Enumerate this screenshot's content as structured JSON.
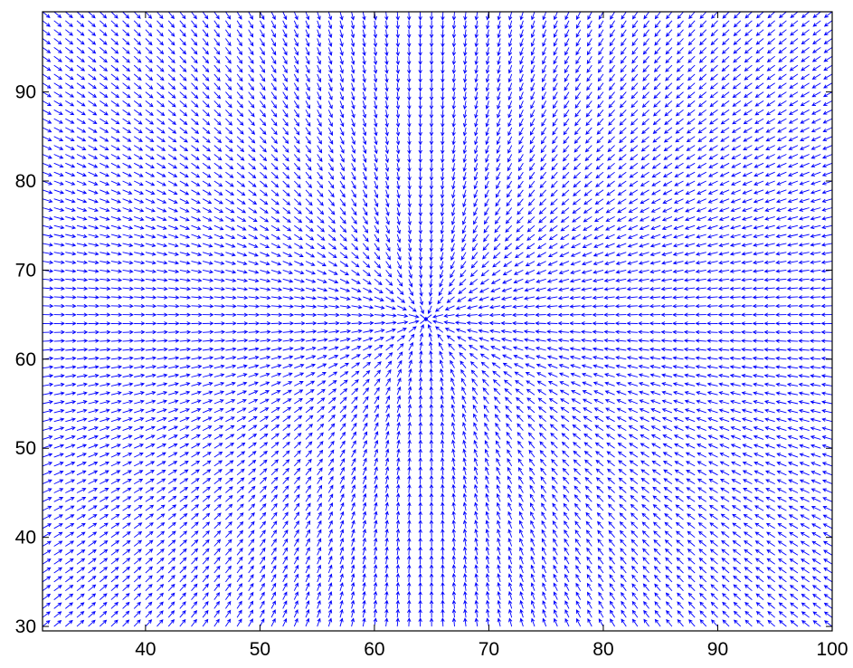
{
  "chart_data": {
    "type": "quiver",
    "title": "",
    "xlabel": "",
    "ylabel": "",
    "xlim": [
      31,
      100
    ],
    "ylim": [
      29.5,
      99
    ],
    "xticks": [
      40,
      50,
      60,
      70,
      80,
      90,
      100
    ],
    "yticks": [
      30,
      40,
      50,
      60,
      70,
      80,
      90
    ],
    "xtick_labels": [
      "40",
      "50",
      "60",
      "70",
      "80",
      "90",
      "100"
    ],
    "ytick_labels": [
      "30",
      "40",
      "50",
      "60",
      "70",
      "80",
      "90"
    ],
    "grid": false,
    "legend": "none",
    "field": {
      "description_type": "radial-sink",
      "center": [
        64.5,
        64.5
      ],
      "x_grid": {
        "start": 31,
        "stop": 100,
        "step": 1
      },
      "y_grid": {
        "start": 30,
        "stop": 99,
        "step": 1
      },
      "arrow_length": 0.9,
      "direction": "toward-center"
    },
    "arrow_color": "#0000ff",
    "axes_color": "#000000"
  }
}
